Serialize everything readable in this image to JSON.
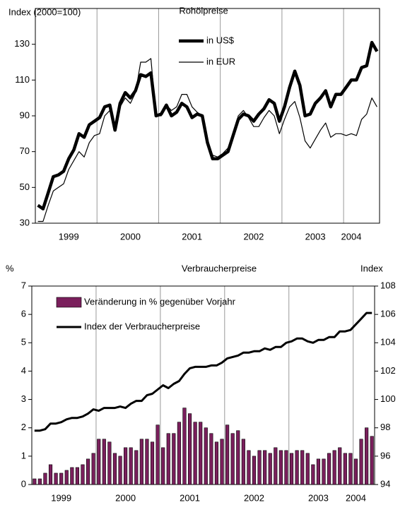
{
  "chart_data": [
    {
      "type": "line",
      "title": "Rohölpreise",
      "ylabel": "Index (2000=100)",
      "categories": [
        null,
        null,
        null,
        null,
        null,
        null,
        "1999",
        null,
        null,
        null,
        null,
        null,
        null,
        null,
        null,
        null,
        null,
        null,
        "2000",
        null,
        null,
        null,
        null,
        null,
        null,
        null,
        null,
        null,
        null,
        null,
        "2001",
        null,
        null,
        null,
        null,
        null,
        null,
        null,
        null,
        null,
        null,
        null,
        "2002",
        null,
        null,
        null,
        null,
        null,
        null,
        null,
        null,
        null,
        null,
        null,
        "2003",
        null,
        null,
        null,
        null,
        null,
        null,
        "2004",
        null,
        null,
        null,
        null,
        null
      ],
      "series": [
        {
          "name": "in US$",
          "color": "#000000",
          "linewidth": 4.5,
          "values": [
            40,
            38,
            47,
            56,
            57,
            59,
            66,
            71,
            80,
            78,
            85,
            87,
            89,
            95,
            96,
            82,
            97,
            103,
            100,
            104,
            113,
            112,
            114,
            90,
            91,
            96,
            90,
            92,
            97,
            95,
            89,
            91,
            90,
            75,
            66,
            66,
            68,
            70,
            79,
            88,
            91,
            90,
            87,
            91,
            94,
            99,
            97,
            87,
            95,
            106,
            115,
            107,
            90,
            91,
            97,
            100,
            104,
            95,
            102,
            102,
            106,
            110,
            110,
            117,
            118,
            131,
            126
          ]
        },
        {
          "name": "in EUR",
          "color": "#000000",
          "linewidth": 1.2,
          "values": [
            31,
            31,
            40,
            48,
            50,
            52,
            60,
            65,
            70,
            67,
            75,
            79,
            80,
            90,
            93,
            85,
            95,
            100,
            97,
            103,
            120,
            120,
            122,
            90,
            90,
            96,
            93,
            95,
            102,
            102,
            95,
            92,
            90,
            77,
            68,
            67,
            69,
            72,
            80,
            90,
            93,
            89,
            84,
            84,
            89,
            93,
            90,
            80,
            88,
            95,
            98,
            89,
            76,
            72,
            77,
            82,
            86,
            78,
            80,
            80,
            79,
            80,
            79,
            88,
            91,
            100,
            95
          ]
        }
      ],
      "ylim": [
        30,
        150
      ],
      "yticks": [
        30,
        50,
        70,
        90,
        110,
        130
      ]
    },
    {
      "type": "bar",
      "title": "Verbraucherpreise",
      "ylabel": "%",
      "y2label": "Index",
      "categories": [
        null,
        null,
        null,
        null,
        null,
        "1999",
        null,
        null,
        null,
        null,
        null,
        null,
        null,
        null,
        null,
        null,
        null,
        "2000",
        null,
        null,
        null,
        null,
        null,
        null,
        null,
        null,
        null,
        null,
        null,
        "2001",
        null,
        null,
        null,
        null,
        null,
        null,
        null,
        null,
        null,
        null,
        null,
        "2002",
        null,
        null,
        null,
        null,
        null,
        null,
        null,
        null,
        null,
        null,
        null,
        "2003",
        null,
        null,
        null,
        null,
        null,
        null,
        "2004",
        null,
        null,
        null
      ],
      "series": [
        {
          "name": "Veränderung in % gegenüber Vorjahr",
          "type": "bar",
          "color": "#7a1f5c",
          "values": [
            0.2,
            0.2,
            0.4,
            0.7,
            0.4,
            0.4,
            0.5,
            0.6,
            0.6,
            0.7,
            0.9,
            1.1,
            1.6,
            1.6,
            1.5,
            1.1,
            1.0,
            1.3,
            1.3,
            1.2,
            1.6,
            1.6,
            1.5,
            2.1,
            1.3,
            1.8,
            1.8,
            2.2,
            2.7,
            2.5,
            2.2,
            2.2,
            2.0,
            1.8,
            1.5,
            1.6,
            2.1,
            1.8,
            1.9,
            1.6,
            1.2,
            1.0,
            1.2,
            1.2,
            1.1,
            1.3,
            1.2,
            1.2,
            1.1,
            1.2,
            1.2,
            1.1,
            0.7,
            0.9,
            0.9,
            1.1,
            1.2,
            1.3,
            1.1,
            1.1,
            0.9,
            1.6,
            2.0,
            1.7
          ]
        },
        {
          "name": "Index der Verbraucherpreise",
          "type": "line",
          "axis": "y2",
          "color": "#000000",
          "linewidth": 3,
          "values": [
            97.8,
            97.8,
            97.9,
            98.3,
            98.3,
            98.4,
            98.6,
            98.7,
            98.7,
            98.8,
            99.0,
            99.3,
            99.2,
            99.4,
            99.4,
            99.4,
            99.5,
            99.4,
            99.7,
            99.9,
            99.9,
            100.3,
            100.4,
            100.7,
            101.0,
            100.8,
            101.1,
            101.3,
            101.8,
            102.2,
            102.3,
            102.3,
            102.3,
            102.4,
            102.4,
            102.6,
            102.9,
            103.0,
            103.1,
            103.3,
            103.3,
            103.4,
            103.4,
            103.6,
            103.5,
            103.7,
            103.7,
            104.0,
            104.1,
            104.3,
            104.3,
            104.1,
            104.0,
            104.2,
            104.2,
            104.4,
            104.4,
            104.8,
            104.8,
            104.9,
            105.3,
            105.7,
            106.1,
            106.1
          ]
        }
      ],
      "ylim": [
        0,
        7
      ],
      "yticks": [
        0,
        1,
        2,
        3,
        4,
        5,
        6,
        7
      ],
      "y2lim": [
        94,
        108
      ],
      "y2ticks": [
        94,
        96,
        98,
        100,
        102,
        104,
        106,
        108
      ]
    }
  ]
}
